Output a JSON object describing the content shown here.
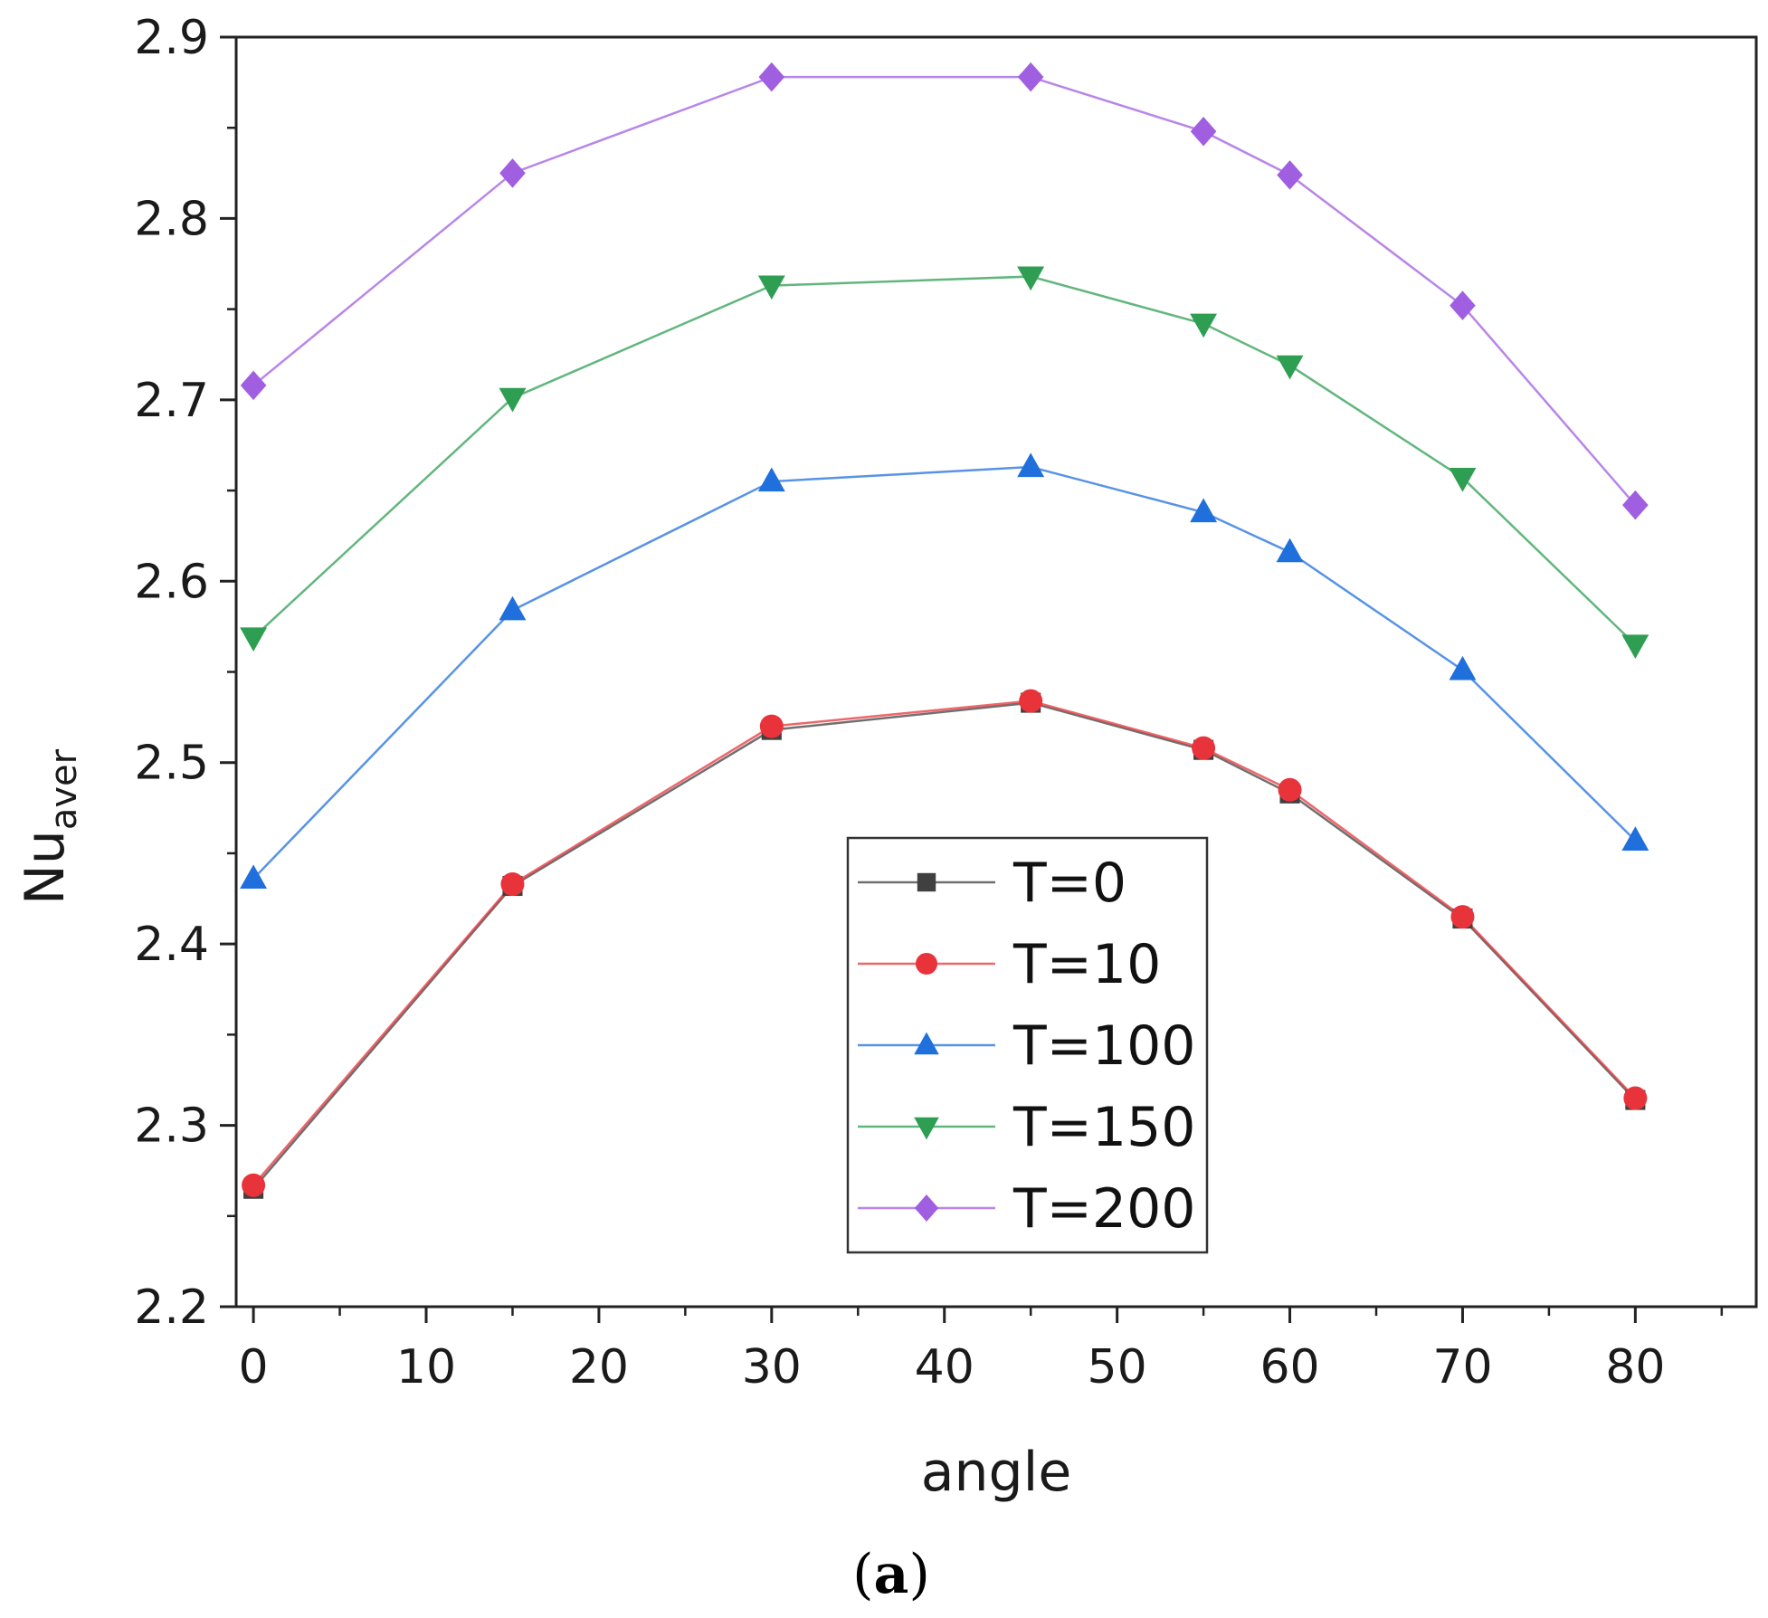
{
  "chart_data": {
    "type": "line",
    "title": "",
    "xlabel": "angle",
    "ylabel": {
      "main": "Nu",
      "sub": "aver"
    },
    "xlim": [
      -1,
      87
    ],
    "ylim": [
      2.2,
      2.9
    ],
    "x_ticks": [
      0,
      10,
      20,
      30,
      40,
      50,
      60,
      70,
      80
    ],
    "y_ticks": [
      2.2,
      2.3,
      2.4,
      2.5,
      2.6,
      2.7,
      2.8,
      2.9
    ],
    "x_tick_labels": [
      "0",
      "10",
      "20",
      "30",
      "40",
      "50",
      "60",
      "70",
      "80"
    ],
    "y_tick_labels": [
      "2.2",
      "2.3",
      "2.4",
      "2.5",
      "2.6",
      "2.7",
      "2.8",
      "2.9"
    ],
    "grid": false,
    "legend_position": "bottom-center",
    "x": [
      0,
      15,
      30,
      45,
      55,
      60,
      70,
      80
    ],
    "series": [
      {
        "name": "T=0",
        "marker": "square",
        "color": "#404040",
        "values": [
          2.265,
          2.432,
          2.518,
          2.533,
          2.507,
          2.483,
          2.414,
          2.314
        ]
      },
      {
        "name": "T=10",
        "marker": "circle",
        "color": "#e8333a",
        "values": [
          2.267,
          2.433,
          2.52,
          2.534,
          2.508,
          2.485,
          2.415,
          2.315
        ]
      },
      {
        "name": "T=100",
        "marker": "triangle-up",
        "color": "#1f6fdc",
        "values": [
          2.436,
          2.584,
          2.655,
          2.663,
          2.638,
          2.616,
          2.551,
          2.457
        ]
      },
      {
        "name": "T=150",
        "marker": "triangle-down",
        "color": "#2e9e52",
        "values": [
          2.569,
          2.701,
          2.763,
          2.768,
          2.742,
          2.719,
          2.657,
          2.565
        ]
      },
      {
        "name": "T=200",
        "marker": "diamond",
        "color": "#a05ee0",
        "values": [
          2.708,
          2.825,
          2.878,
          2.878,
          2.848,
          2.824,
          2.752,
          2.642
        ]
      }
    ]
  },
  "caption": "(a)"
}
